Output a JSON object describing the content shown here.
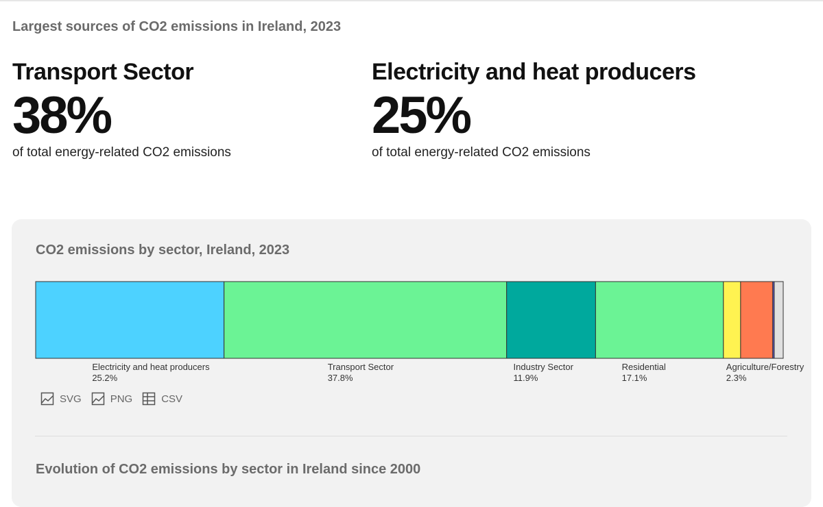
{
  "page": {
    "title": "Largest sources of CO2 emissions in Ireland, 2023"
  },
  "stats": [
    {
      "name": "Transport Sector",
      "value": "38%",
      "desc": "of total energy-related CO2 emissions"
    },
    {
      "name": "Electricity and heat producers",
      "value": "25%",
      "desc": "of total energy-related CO2 emissions"
    }
  ],
  "chart_data": {
    "type": "bar",
    "orientation": "horizontal-stacked-100",
    "title": "CO2 emissions by sector, Ireland, 2023",
    "series": [
      {
        "name": "Electricity and heat producers",
        "value": 25.2,
        "label": "25.2%",
        "color": "#4dd2ff",
        "show_label": true
      },
      {
        "name": "Transport Sector",
        "value": 37.8,
        "label": "37.8%",
        "color": "#6bf395",
        "show_label": true
      },
      {
        "name": "Industry Sector",
        "value": 11.9,
        "label": "11.9%",
        "color": "#00a99d",
        "show_label": true
      },
      {
        "name": "Residential",
        "value": 17.1,
        "label": "17.1%",
        "color": "#6bf395",
        "show_label": true
      },
      {
        "name": "Agriculture/Forestry",
        "value": 2.3,
        "label": "2.3%",
        "color": "#fff351",
        "show_label": true
      },
      {
        "name": "",
        "value": 4.3,
        "label": "",
        "color": "#ff7a50",
        "show_label": false
      },
      {
        "name": "",
        "value": 0.2,
        "label": "",
        "color": "#5e55c2",
        "show_label": false
      },
      {
        "name": "",
        "value": 1.2,
        "label": "",
        "color": "#e0e0e0",
        "show_label": false
      }
    ]
  },
  "downloads": [
    {
      "label": "SVG",
      "icon": "image-icon"
    },
    {
      "label": "PNG",
      "icon": "image-icon"
    },
    {
      "label": "CSV",
      "icon": "table-icon"
    }
  ],
  "next_section": {
    "title": "Evolution of CO2 emissions by sector in Ireland since 2000"
  }
}
